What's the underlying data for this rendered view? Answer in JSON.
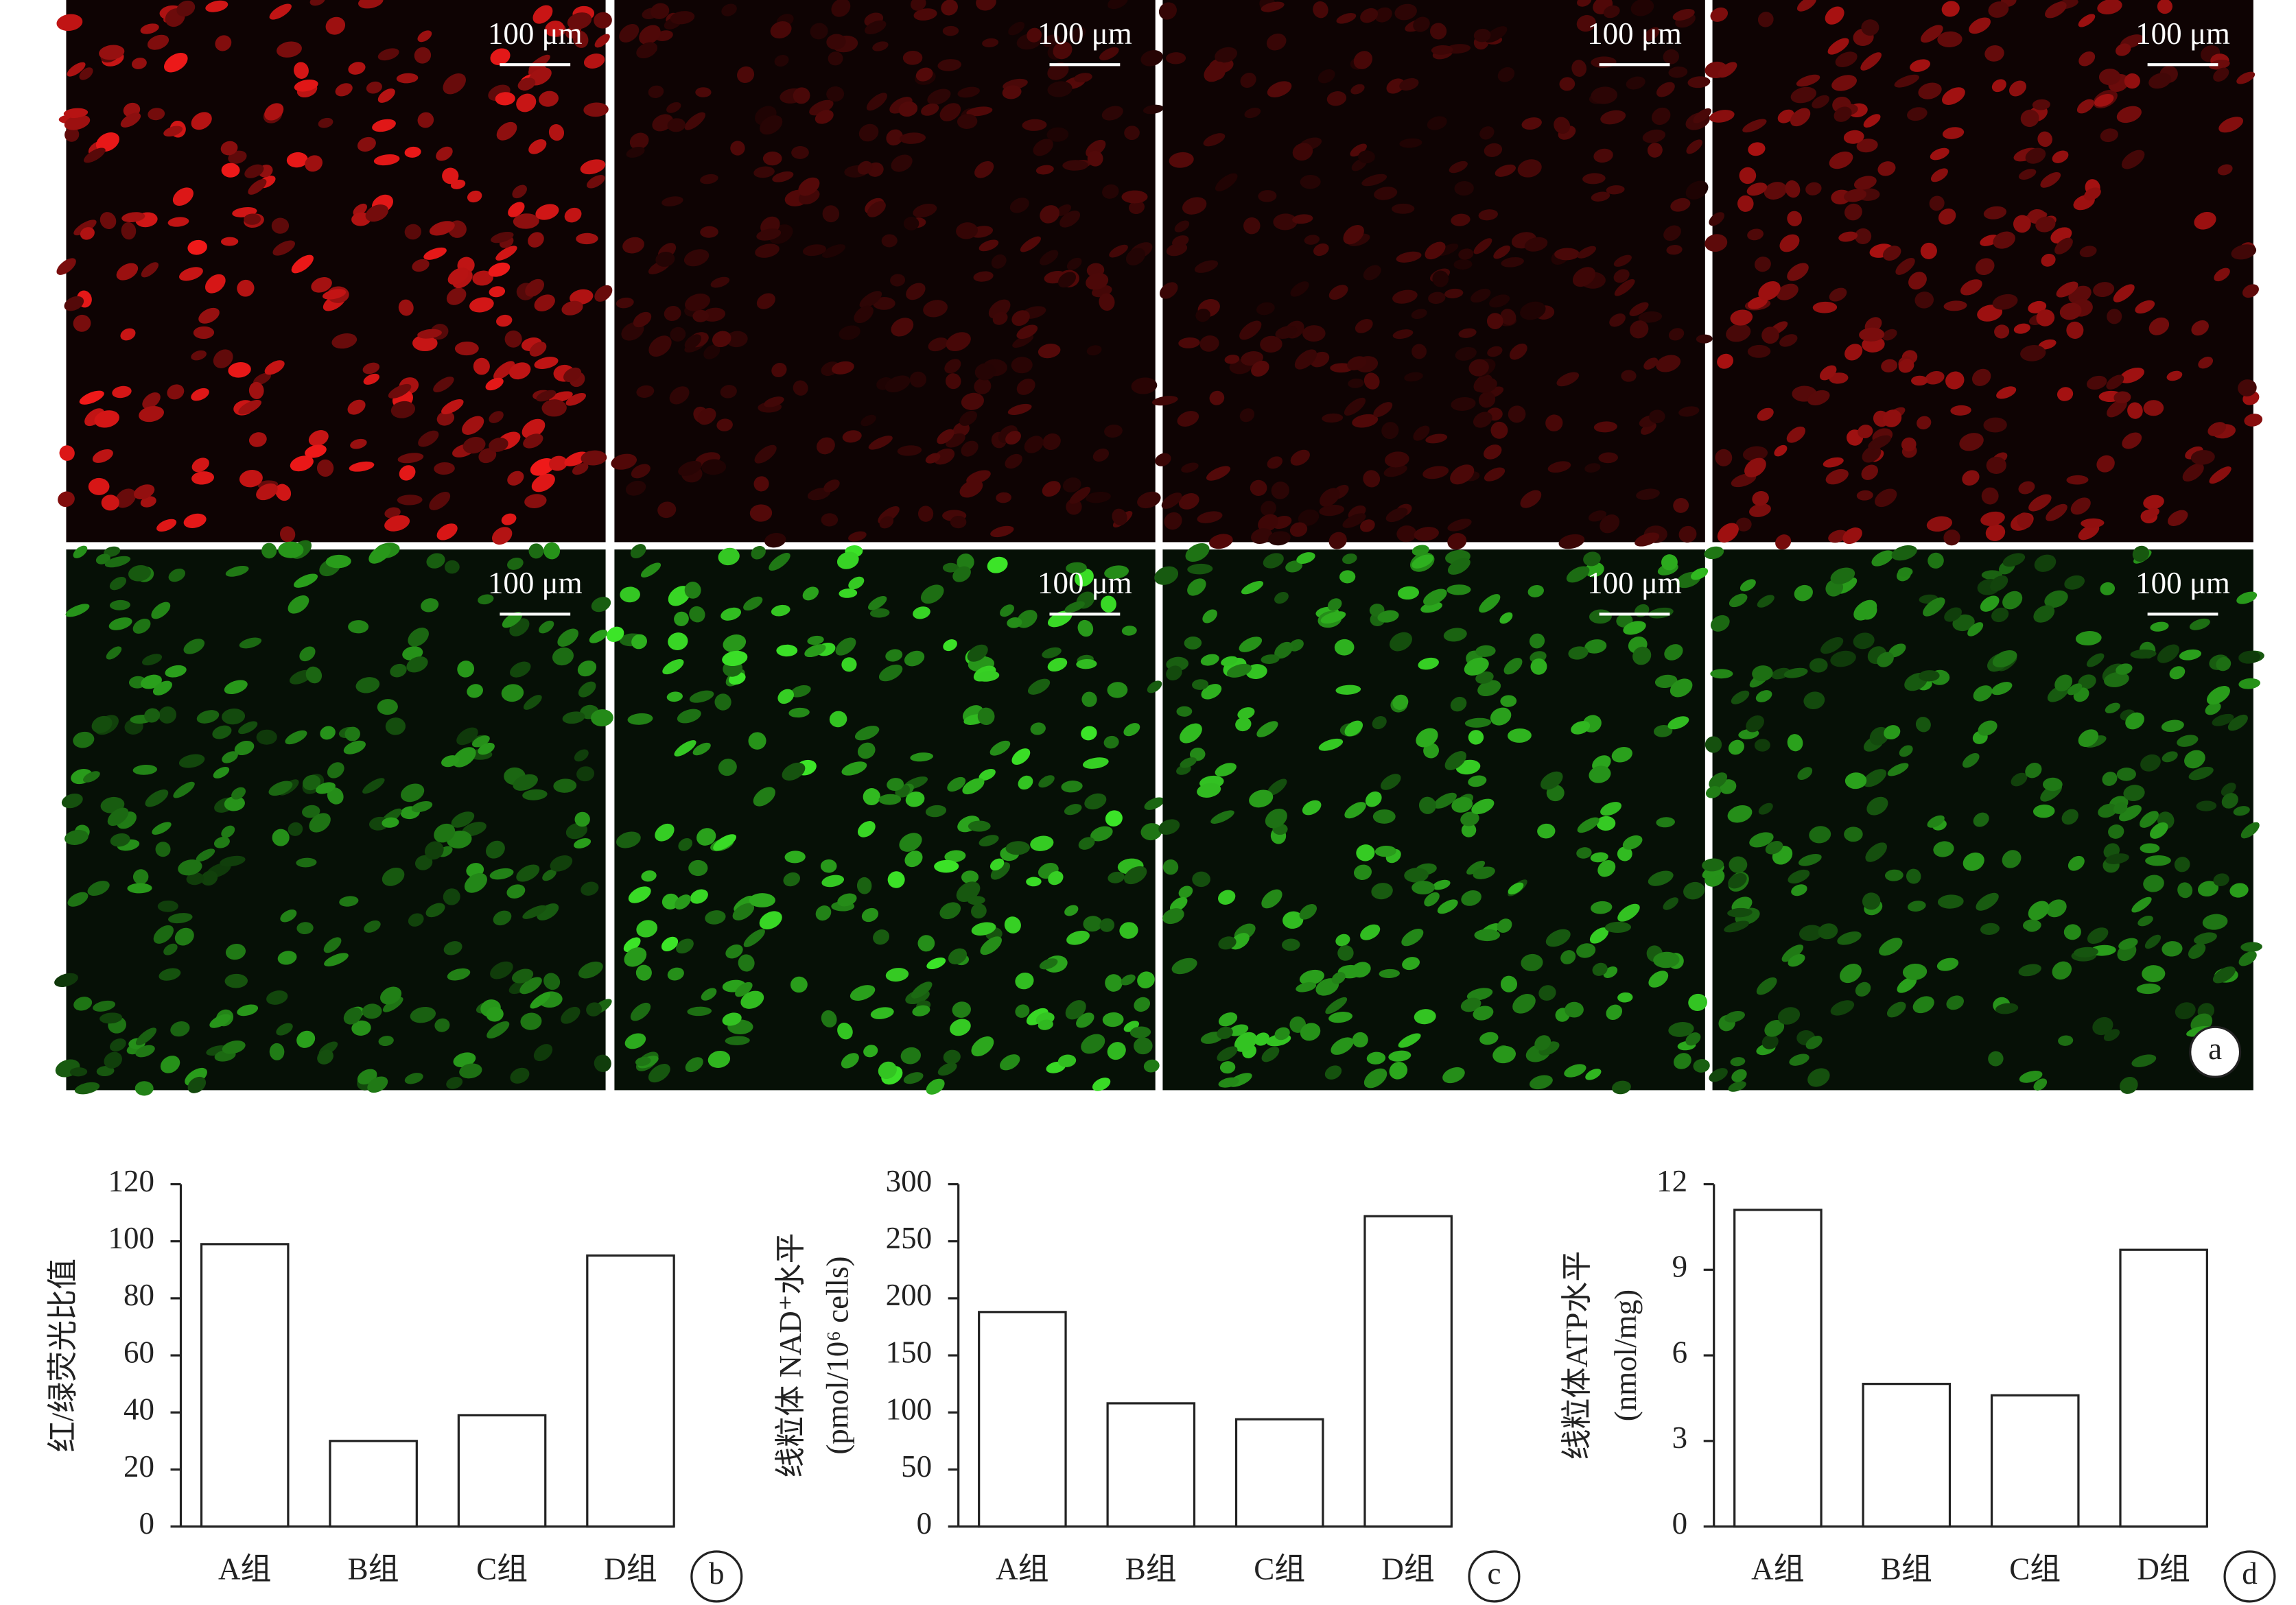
{
  "micrographs": {
    "scale_bar_labels": [
      "100 μm",
      "100 μm",
      "100 μm",
      "100 μm",
      "100 μm",
      "100 μm",
      "100 μm",
      "100 μm"
    ],
    "panel_label": "a"
  },
  "chart_data": [
    {
      "type": "bar",
      "panel_label": "b",
      "ylabel": [
        "红/绿荧光比值"
      ],
      "categories": [
        "A组",
        "B组",
        "C组",
        "D组"
      ],
      "values": [
        99,
        30,
        39,
        95
      ],
      "color": "#ffffff",
      "ylim": [
        0,
        120
      ],
      "yticks": [
        0,
        20,
        40,
        60,
        80,
        100,
        120
      ]
    },
    {
      "type": "bar",
      "panel_label": "c",
      "ylabel": [
        "线粒体 NAD⁺水平",
        "(pmol/10⁶ cells)"
      ],
      "categories": [
        "A组",
        "B组",
        "C组",
        "D组"
      ],
      "values": [
        188,
        108,
        94,
        272
      ],
      "color": "#ffffff",
      "ylim": [
        0,
        300
      ],
      "yticks": [
        0,
        50,
        100,
        150,
        200,
        250,
        300
      ]
    },
    {
      "type": "bar",
      "panel_label": "d",
      "ylabel": [
        "线粒体ATP水平",
        "(nmol/mg)"
      ],
      "categories": [
        "A组",
        "B组",
        "C组",
        "D组"
      ],
      "values": [
        11.1,
        5.0,
        4.6,
        9.7
      ],
      "color": "#ffffff",
      "ylim": [
        0,
        12
      ],
      "yticks": [
        0,
        3,
        6,
        9,
        12
      ]
    }
  ]
}
